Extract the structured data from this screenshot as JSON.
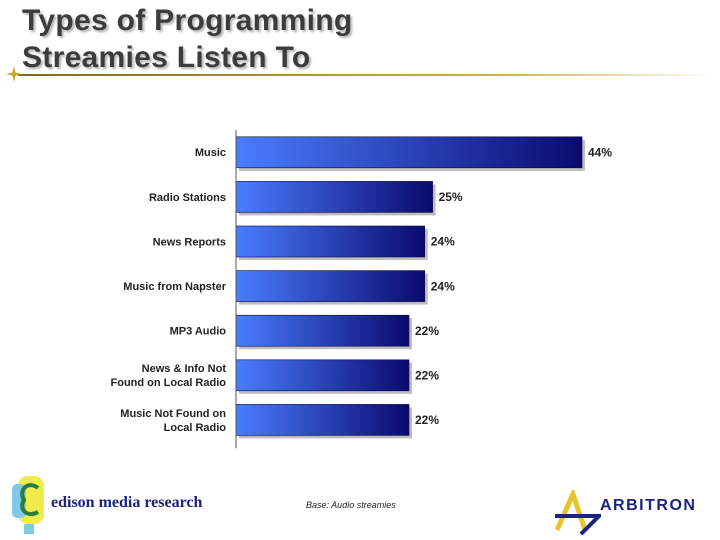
{
  "slide": {
    "title_line1": "Types of Programming",
    "title_line2": "Streamies Listen To",
    "footnote": "Base:  Audio streamies"
  },
  "logos": {
    "edison": "edison media research",
    "arbitron": "ARBITRON"
  },
  "colors": {
    "bar_light": "#4a7dff",
    "bar_dark": "#0a0a6e",
    "axis": "#555555"
  },
  "chart_data": {
    "type": "bar",
    "orientation": "horizontal",
    "title": "Types of Programming Streamies Listen To",
    "categories": [
      [
        "Music"
      ],
      [
        "Radio Stations"
      ],
      [
        "News Reports"
      ],
      [
        "Music from Napster"
      ],
      [
        "MP3 Audio"
      ],
      [
        "News & Info Not",
        "Found on Local Radio"
      ],
      [
        "Music Not Found on",
        "Local Radio"
      ]
    ],
    "values": [
      44,
      25,
      24,
      24,
      22,
      22,
      22
    ],
    "value_labels": [
      "44%",
      "25%",
      "24%",
      "24%",
      "22%",
      "22%",
      "22%"
    ],
    "unit": "%",
    "xlim": [
      0,
      45
    ],
    "grid": false,
    "legend": "none"
  }
}
